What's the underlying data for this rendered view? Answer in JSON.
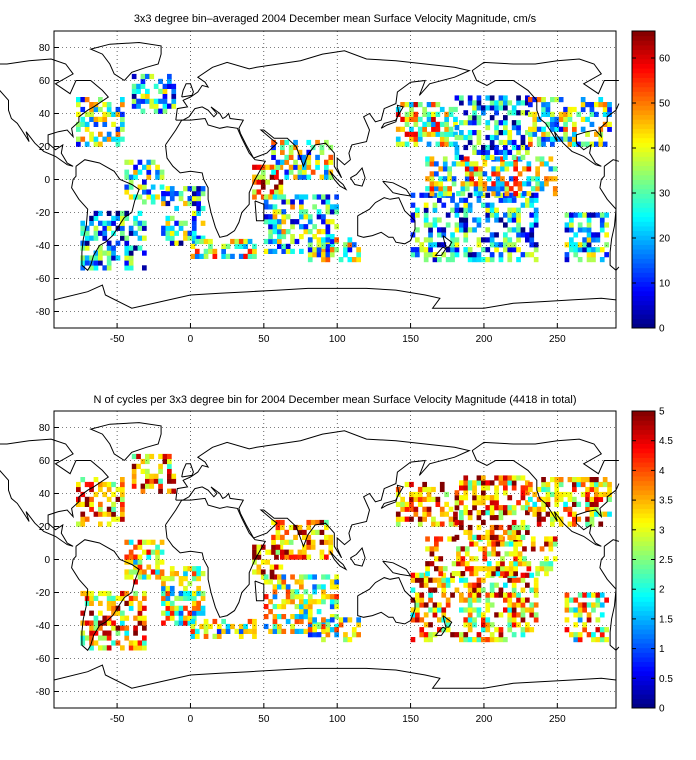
{
  "chart_data": [
    {
      "type": "heatmap",
      "title": "3x3 degree bin–averaged 2004 December mean Surface Velocity Magnitude, cm/s",
      "xlabel": "",
      "ylabel": "",
      "xlim": [
        -93,
        290
      ],
      "ylim": [
        -90,
        90
      ],
      "x_ticks": [
        "-50",
        "0",
        "50",
        "100",
        "150",
        "200",
        "250"
      ],
      "y_ticks": [
        "80",
        "60",
        "40",
        "20",
        "0",
        "-20",
        "-40",
        "-60",
        "-80"
      ],
      "grid": true,
      "colormap": "jet",
      "colorbar": {
        "range": [
          0,
          66
        ],
        "ticks": [
          "0",
          "10",
          "20",
          "30",
          "40",
          "50",
          "60"
        ],
        "location": "right"
      },
      "bin_size_deg": 3,
      "regions": [
        {
          "lon": [
            -78,
            -45
          ],
          "lat": [
            20,
            48
          ],
          "level": 0.45
        },
        {
          "lon": [
            -40,
            -10
          ],
          "lat": [
            40,
            62
          ],
          "level": 0.35
        },
        {
          "lon": [
            -75,
            -30
          ],
          "lat": [
            -55,
            -20
          ],
          "level": 0.25
        },
        {
          "lon": [
            -45,
            -20
          ],
          "lat": [
            -15,
            10
          ],
          "level": 0.4
        },
        {
          "lon": [
            -20,
            10
          ],
          "lat": [
            -40,
            -5
          ],
          "level": 0.35
        },
        {
          "lon": [
            0,
            45
          ],
          "lat": [
            -48,
            -38
          ],
          "level": 0.55
        },
        {
          "lon": [
            42,
            62
          ],
          "lat": [
            -12,
            8
          ],
          "level": 0.85
        },
        {
          "lon": [
            50,
            100
          ],
          "lat": [
            -45,
            -10
          ],
          "level": 0.4
        },
        {
          "lon": [
            55,
            95
          ],
          "lat": [
            0,
            22
          ],
          "level": 0.45
        },
        {
          "lon": [
            80,
            115
          ],
          "lat": [
            -50,
            -35
          ],
          "level": 0.45
        },
        {
          "lon": [
            140,
            180
          ],
          "lat": [
            20,
            45
          ],
          "level": 0.6
        },
        {
          "lon": [
            150,
            235
          ],
          "lat": [
            -50,
            -10
          ],
          "level": 0.3
        },
        {
          "lon": [
            160,
            250
          ],
          "lat": [
            -10,
            12
          ],
          "level": 0.55
        },
        {
          "lon": [
            180,
            230
          ],
          "lat": [
            12,
            50
          ],
          "level": 0.3
        },
        {
          "lon": [
            230,
            285
          ],
          "lat": [
            20,
            48
          ],
          "level": 0.45
        },
        {
          "lon": [
            255,
            285
          ],
          "lat": [
            -50,
            -20
          ],
          "level": 0.35
        }
      ]
    },
    {
      "type": "heatmap",
      "title": "N of cycles per 3x3 degree bin for 2004 December mean Surface Velocity Magnitude (4418 in total)",
      "xlabel": "",
      "ylabel": "",
      "xlim": [
        -93,
        290
      ],
      "ylim": [
        -90,
        90
      ],
      "x_ticks": [
        "-50",
        "0",
        "50",
        "100",
        "150",
        "200",
        "250"
      ],
      "y_ticks": [
        "80",
        "60",
        "40",
        "20",
        "0",
        "-20",
        "-40",
        "-60",
        "-80"
      ],
      "grid": true,
      "colormap": "jet",
      "colorbar": {
        "range": [
          0,
          5
        ],
        "ticks": [
          "0",
          "0.5",
          "1",
          "1.5",
          "2",
          "2.5",
          "3",
          "3.5",
          "4",
          "4.5",
          "5"
        ],
        "location": "right"
      },
      "bin_size_deg": 3,
      "regions": [
        {
          "lon": [
            -78,
            -45
          ],
          "lat": [
            20,
            48
          ],
          "level": 0.8
        },
        {
          "lon": [
            -40,
            -10
          ],
          "lat": [
            40,
            62
          ],
          "level": 0.75
        },
        {
          "lon": [
            -75,
            -30
          ],
          "lat": [
            -55,
            -20
          ],
          "level": 0.7
        },
        {
          "lon": [
            -45,
            -20
          ],
          "lat": [
            -15,
            10
          ],
          "level": 0.6
        },
        {
          "lon": [
            -20,
            10
          ],
          "lat": [
            -40,
            -5
          ],
          "level": 0.55
        },
        {
          "lon": [
            0,
            45
          ],
          "lat": [
            -48,
            -38
          ],
          "level": 0.5
        },
        {
          "lon": [
            42,
            62
          ],
          "lat": [
            -12,
            8
          ],
          "level": 0.9
        },
        {
          "lon": [
            50,
            100
          ],
          "lat": [
            -45,
            -10
          ],
          "level": 0.55
        },
        {
          "lon": [
            55,
            95
          ],
          "lat": [
            0,
            22
          ],
          "level": 0.8
        },
        {
          "lon": [
            80,
            115
          ],
          "lat": [
            -50,
            -35
          ],
          "level": 0.5
        },
        {
          "lon": [
            140,
            180
          ],
          "lat": [
            20,
            45
          ],
          "level": 0.85
        },
        {
          "lon": [
            150,
            235
          ],
          "lat": [
            -50,
            -10
          ],
          "level": 0.7
        },
        {
          "lon": [
            160,
            250
          ],
          "lat": [
            -10,
            12
          ],
          "level": 0.7
        },
        {
          "lon": [
            180,
            230
          ],
          "lat": [
            12,
            50
          ],
          "level": 0.75
        },
        {
          "lon": [
            230,
            285
          ],
          "lat": [
            20,
            48
          ],
          "level": 0.7
        },
        {
          "lon": [
            255,
            285
          ],
          "lat": [
            -50,
            -20
          ],
          "level": 0.6
        }
      ]
    }
  ]
}
